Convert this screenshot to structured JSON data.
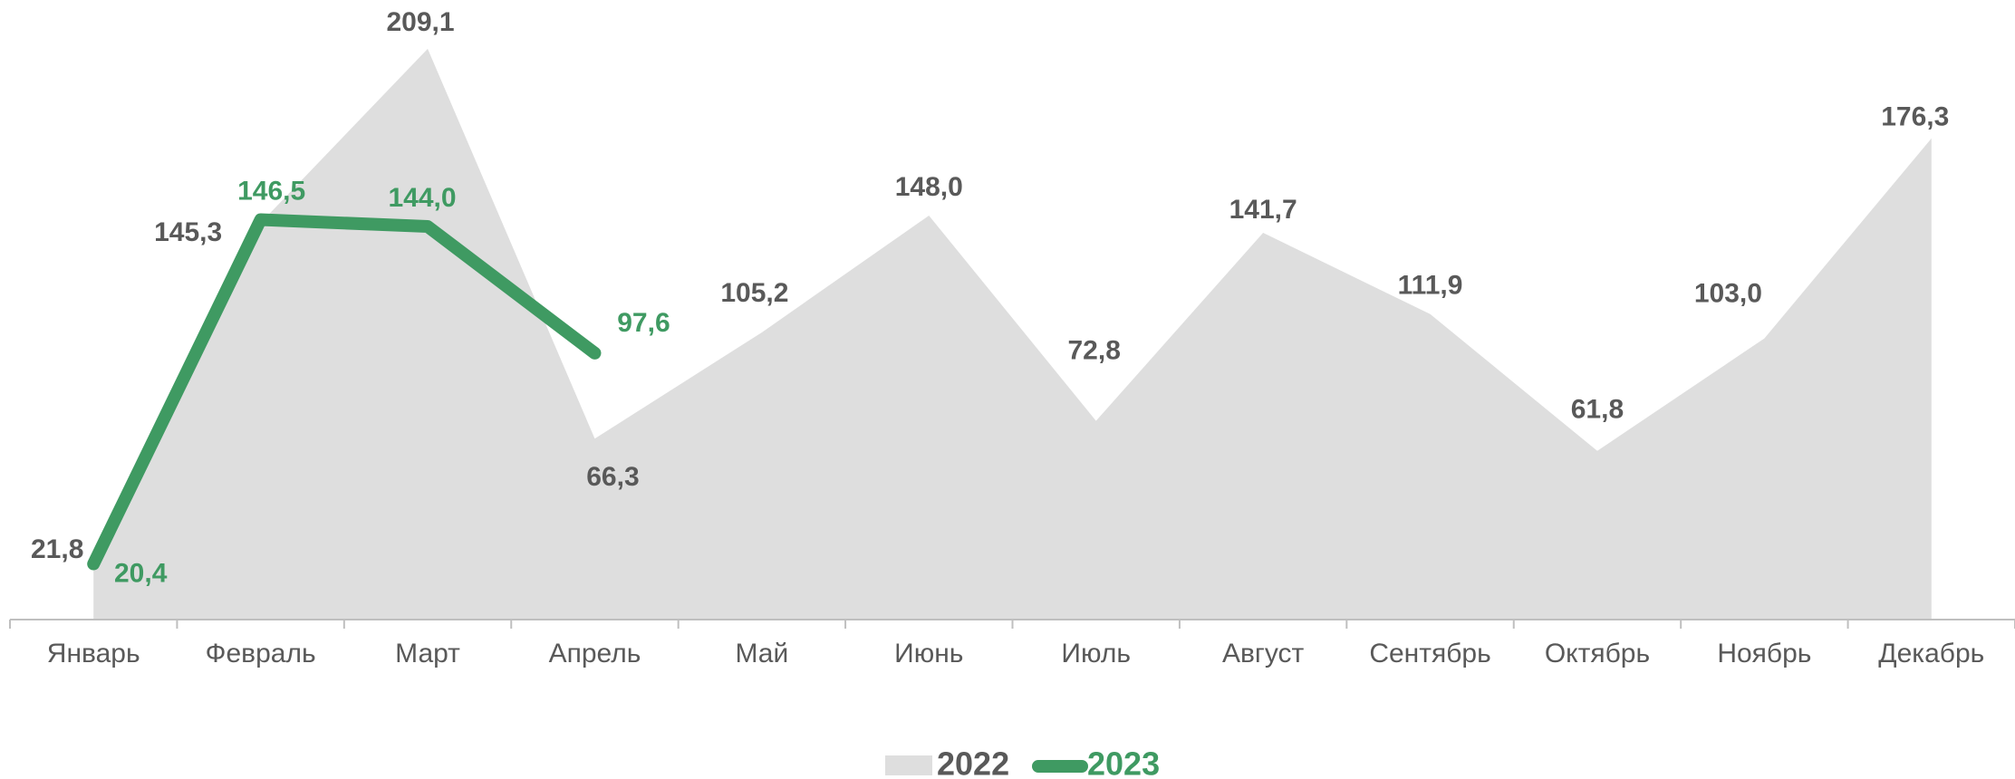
{
  "chart_data": {
    "type": "area_line",
    "categories": [
      "Январь",
      "Февраль",
      "Март",
      "Апрель",
      "Май",
      "Июнь",
      "Июль",
      "Август",
      "Сентябрь",
      "Октябрь",
      "Ноябрь",
      "Декабрь"
    ],
    "series": [
      {
        "name": "2022",
        "color": "#dedede",
        "kind": "area",
        "values": [
          21.8,
          145.3,
          209.1,
          66.3,
          105.2,
          148.0,
          72.8,
          141.7,
          111.9,
          61.8,
          103.0,
          176.3
        ],
        "value_labels": [
          "21,8",
          "145,3",
          "209,1",
          "66,3",
          "105,2",
          "148,0",
          "72,8",
          "141,7",
          "111,9",
          "61,8",
          "103,0",
          "176,3"
        ]
      },
      {
        "name": "2023",
        "color": "#3f9a62",
        "kind": "line",
        "values": [
          20.4,
          146.5,
          144.0,
          97.6,
          null,
          null,
          null,
          null,
          null,
          null,
          null,
          null
        ],
        "value_labels": [
          "20,4",
          "146,5",
          "144,0",
          "97,6",
          null,
          null,
          null,
          null,
          null,
          null,
          null,
          null
        ]
      }
    ],
    "ylim": [
      0,
      220
    ],
    "legend": "bottom"
  }
}
